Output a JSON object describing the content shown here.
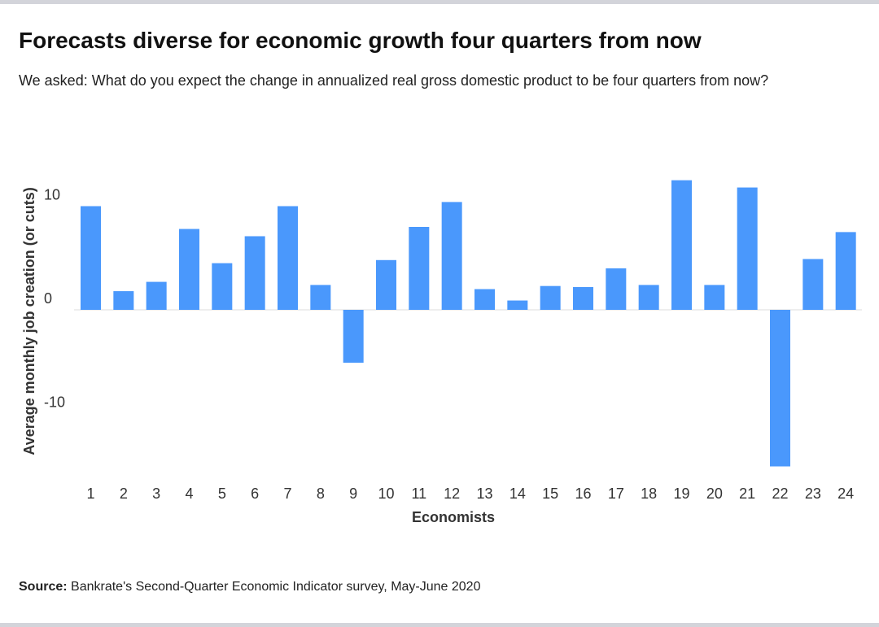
{
  "chart_data": {
    "type": "bar",
    "title": "Forecasts diverse for economic growth four quarters from now",
    "subtitle": "We asked: What do you expect the change in annualized real gross domestic product to be four quarters from now?",
    "y_label": "Average monthly job creation (or cuts)",
    "x_label": "Economists",
    "source_label": "Source:",
    "source": "Bankrate's Second-Quarter Economic Indicator survey, May-June 2020",
    "categories": [
      "1",
      "2",
      "3",
      "4",
      "5",
      "6",
      "7",
      "8",
      "9",
      "10",
      "11",
      "12",
      "13",
      "14",
      "15",
      "16",
      "17",
      "18",
      "19",
      "20",
      "21",
      "22",
      "23",
      "24"
    ],
    "values": [
      10.0,
      1.8,
      2.7,
      7.8,
      4.5,
      7.1,
      10.0,
      2.4,
      -5.1,
      4.8,
      8.0,
      10.4,
      2.0,
      0.9,
      2.3,
      2.2,
      4.0,
      2.4,
      12.5,
      2.4,
      11.8,
      -15.1,
      4.9,
      7.5
    ],
    "color": "#4a98fc",
    "ylim": [
      -16,
      14
    ],
    "yticks": [
      -10,
      0,
      10
    ],
    "grid": false
  }
}
